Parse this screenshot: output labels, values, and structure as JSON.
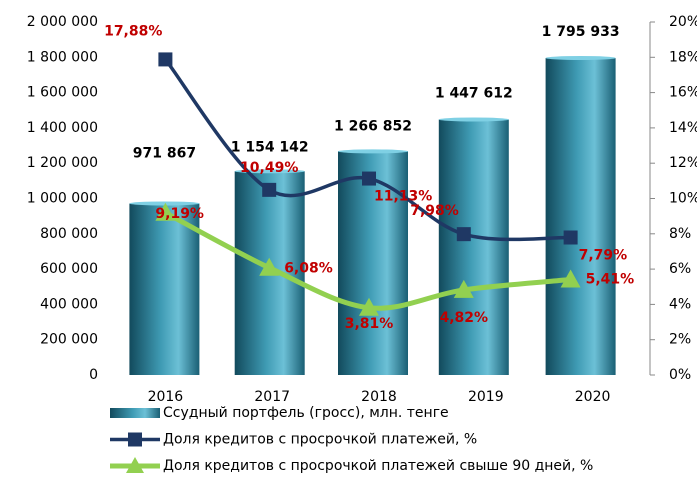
{
  "chart_data": {
    "type": "bar-line",
    "categories": [
      "2016",
      "2017",
      "2018",
      "2019",
      "2020"
    ],
    "series": [
      {
        "name": "Ссудный портфель (гросс), млн. тенге",
        "type": "bar",
        "color": "#2a7f96",
        "values": [
          971867,
          1154142,
          1266852,
          1447612,
          1795933
        ],
        "value_labels": [
          "971 867",
          "1 154 142",
          "1 266 852",
          "1 447 612",
          "1 795 933"
        ]
      },
      {
        "name": "Доля кредитов с просрочкой платежей, %",
        "type": "line",
        "axis": "y2",
        "color": "#1f3864",
        "marker": "square",
        "values": [
          17.88,
          10.49,
          11.13,
          7.98,
          7.79
        ],
        "value_labels": [
          "17,88%",
          "10,49%",
          "11,13%",
          "7,98%",
          "7,79%"
        ]
      },
      {
        "name": "Доля кредитов с просрочкой платежей свыше 90 дней, %",
        "type": "line",
        "axis": "y2",
        "color": "#92d050",
        "marker": "triangle",
        "values": [
          9.19,
          6.08,
          3.81,
          4.82,
          5.41
        ],
        "value_labels": [
          "9,19%",
          "6,08%",
          "3,81%",
          "4,82%",
          "5,41%"
        ]
      }
    ],
    "ylim": [
      0,
      2000000
    ],
    "yticks": [
      0,
      {
        "value": 200000,
        "label": "200 000"
      },
      {
        "value": 400000,
        "label": "400 000"
      },
      {
        "value": 600000,
        "label": "600 000"
      },
      {
        "value": 800000,
        "label": "800 000"
      },
      {
        "value": 1000000,
        "label": "1 000 000"
      },
      {
        "value": 1200000,
        "label": "1 200 000"
      },
      {
        "value": 1400000,
        "label": "1 400 000"
      },
      {
        "value": 1600000,
        "label": "1 600 000"
      },
      {
        "value": 1800000,
        "label": "1 800 000"
      },
      {
        "value": 2000000,
        "label": "2 000 000"
      }
    ],
    "y2lim": [
      0,
      20
    ],
    "y2ticks": [
      {
        "value": 0,
        "label": "0%"
      },
      {
        "value": 2,
        "label": "2%"
      },
      {
        "value": 4,
        "label": "4%"
      },
      {
        "value": 6,
        "label": "6%"
      },
      {
        "value": 8,
        "label": "8%"
      },
      {
        "value": 10,
        "label": "10%"
      },
      {
        "value": 12,
        "label": "12%"
      },
      {
        "value": 14,
        "label": "14%"
      },
      {
        "value": 16,
        "label": "16%"
      },
      {
        "value": 18,
        "label": "18%"
      },
      {
        "value": 20,
        "label": "20%"
      }
    ],
    "label_color": "#c00000"
  }
}
